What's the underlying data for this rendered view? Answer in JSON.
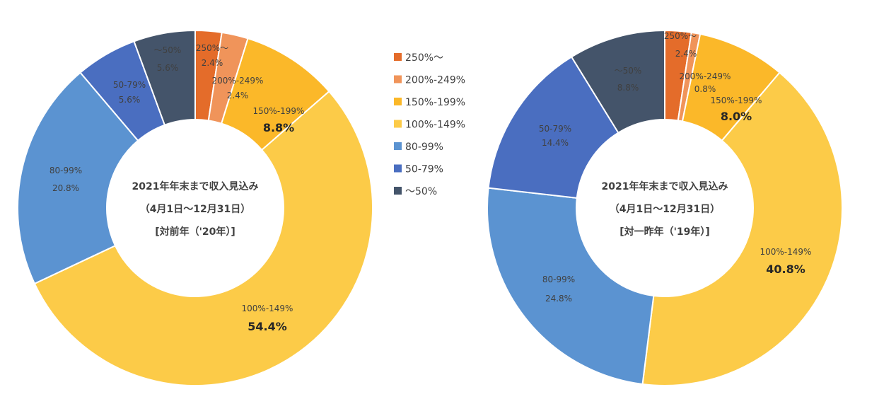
{
  "chart_data": [
    {
      "type": "pie",
      "center_title": [
        "2021年年末まで収入見込み",
        "（4月1日～12月31日）",
        "[対前年（'20年）]"
      ],
      "categories": [
        "250%～",
        "200%-249%",
        "150%-199%",
        "100%-149%",
        "80-99%",
        "50-79%",
        "～50%"
      ],
      "values": [
        2.4,
        2.4,
        8.8,
        54.4,
        20.8,
        5.6,
        5.6
      ],
      "labels": [
        {
          "name": "250%～",
          "value": "2.4%"
        },
        {
          "name": "200%-249%",
          "value": "2.4%"
        },
        {
          "name": "150%-199%",
          "value": "8.8%"
        },
        {
          "name": "100%-149%",
          "value": "54.4%"
        },
        {
          "name": "80-99%",
          "value": "20.8%"
        },
        {
          "name": "50-79%",
          "value": "5.6%"
        },
        {
          "name": "～50%",
          "value": "5.6%"
        }
      ]
    },
    {
      "type": "pie",
      "center_title": [
        "2021年年末まで収入見込み",
        "（4月1日～12月31日）",
        "[対一昨年（'19年）]"
      ],
      "categories": [
        "250%～",
        "200%-249%",
        "150%-199%",
        "100%-149%",
        "80-99%",
        "50-79%",
        "～50%"
      ],
      "values": [
        2.4,
        0.8,
        8.0,
        40.8,
        24.8,
        14.4,
        8.8
      ],
      "labels": [
        {
          "name": "250%～",
          "value": "2.4%"
        },
        {
          "name": "200%-249%",
          "value": "0.8%"
        },
        {
          "name": "150%-199%",
          "value": "8.0%"
        },
        {
          "name": "100%-149%",
          "value": "40.8%"
        },
        {
          "name": "80-99%",
          "value": "24.8%"
        },
        {
          "name": "50-79%",
          "value": "14.4%"
        },
        {
          "name": "～50%",
          "value": "8.8%"
        }
      ]
    }
  ],
  "legend": {
    "placement": "middle",
    "items": [
      {
        "label": "250%～",
        "color": "#E46C2A"
      },
      {
        "label": "200%-249%",
        "color": "#F0945A"
      },
      {
        "label": "150%-199%",
        "color": "#FBB829"
      },
      {
        "label": "100%-149%",
        "color": "#FCCB48"
      },
      {
        "label": "80-99%",
        "color": "#5B93D1"
      },
      {
        "label": "50-79%",
        "color": "#4A6EC0"
      },
      {
        "label": "～50%",
        "color": "#44546A"
      }
    ]
  },
  "colors": [
    "#E46C2A",
    "#F0945A",
    "#FBB829",
    "#FCCB48",
    "#5B93D1",
    "#4A6EC0",
    "#44546A"
  ]
}
